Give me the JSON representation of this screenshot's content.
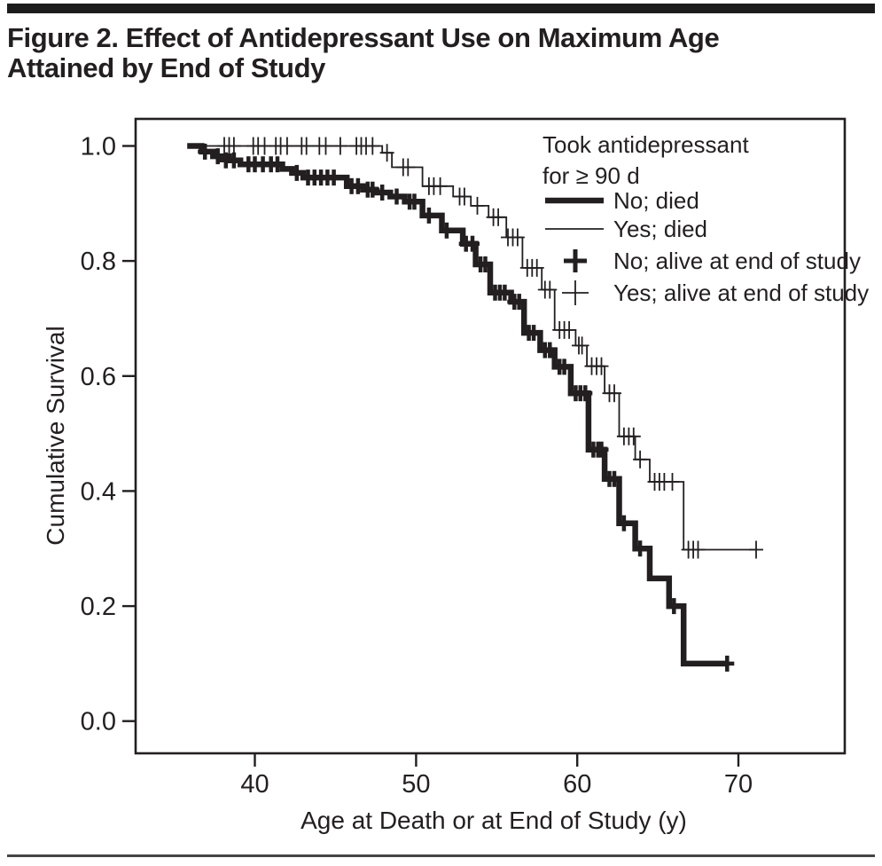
{
  "figure": {
    "title_line1": "Figure 2. Effect of Antidepressant Use on Maximum Age",
    "title_line2": "Attained by End of Study"
  },
  "colors": {
    "ink": "#231f20",
    "background": "#ffffff"
  },
  "chart_data": {
    "type": "line",
    "subtype": "kaplan-meier-step-curves",
    "xlabel": "Age at Death or at End of Study (y)",
    "ylabel": "Cumulative Survival",
    "xlim": [
      32.6,
      76.6
    ],
    "ylim": [
      -0.056,
      1.047
    ],
    "x_ticks": [
      40,
      50,
      60,
      70
    ],
    "y_ticks": [
      1.0,
      0.8,
      0.6,
      0.4,
      0.2,
      0.0
    ],
    "y_tick_labels": [
      "1.0",
      "0.8",
      "0.6",
      "0.4",
      "0.2",
      "0.0"
    ],
    "grid": false,
    "legend": {
      "position": "upper-right-inside",
      "title_line1": "Took antidepressant",
      "title_line2": "for ≥ 90 d",
      "entries": [
        {
          "label": "No; died",
          "marker": "thick-line"
        },
        {
          "label": "Yes; died",
          "marker": "thin-line"
        },
        {
          "label": "No; alive at end of study",
          "marker": "thick-plus"
        },
        {
          "label": "Yes; alive at end of study",
          "marker": "thin-plus"
        }
      ]
    },
    "series": [
      {
        "name": "No; died",
        "style": "thick",
        "steps": [
          [
            35.8,
            1.0
          ],
          [
            36.7,
            0.99
          ],
          [
            37.4,
            0.982
          ],
          [
            38.4,
            0.975
          ],
          [
            39.1,
            0.968
          ],
          [
            41.7,
            0.96
          ],
          [
            42.3,
            0.953
          ],
          [
            43.0,
            0.945
          ],
          [
            45.7,
            0.93
          ],
          [
            46.7,
            0.924
          ],
          [
            47.5,
            0.919
          ],
          [
            48.4,
            0.912
          ],
          [
            49.3,
            0.903
          ],
          [
            50.4,
            0.879
          ],
          [
            51.6,
            0.853
          ],
          [
            52.9,
            0.83
          ],
          [
            53.7,
            0.794
          ],
          [
            54.6,
            0.745
          ],
          [
            55.9,
            0.729
          ],
          [
            56.7,
            0.675
          ],
          [
            57.7,
            0.645
          ],
          [
            58.6,
            0.616
          ],
          [
            59.6,
            0.57
          ],
          [
            60.7,
            0.472
          ],
          [
            61.7,
            0.421
          ],
          [
            62.6,
            0.344
          ],
          [
            63.6,
            0.3
          ],
          [
            64.5,
            0.248
          ],
          [
            65.7,
            0.2
          ],
          [
            66.6,
            0.1
          ],
          [
            69.3,
            0.1
          ]
        ],
        "censors": [
          [
            36.9,
            0.99
          ],
          [
            37.7,
            0.982
          ],
          [
            38.2,
            0.975
          ],
          [
            38.7,
            0.975
          ],
          [
            39.6,
            0.968
          ],
          [
            40.0,
            0.968
          ],
          [
            40.5,
            0.968
          ],
          [
            41.0,
            0.968
          ],
          [
            41.4,
            0.968
          ],
          [
            42.6,
            0.953
          ],
          [
            43.3,
            0.945
          ],
          [
            43.7,
            0.945
          ],
          [
            44.1,
            0.945
          ],
          [
            44.5,
            0.945
          ],
          [
            44.9,
            0.945
          ],
          [
            46.0,
            0.93
          ],
          [
            46.4,
            0.93
          ],
          [
            47.0,
            0.924
          ],
          [
            47.3,
            0.924
          ],
          [
            47.9,
            0.919
          ],
          [
            48.8,
            0.912
          ],
          [
            49.6,
            0.903
          ],
          [
            49.9,
            0.903
          ],
          [
            50.8,
            0.879
          ],
          [
            51.9,
            0.853
          ],
          [
            53.1,
            0.83
          ],
          [
            53.5,
            0.83
          ],
          [
            54.0,
            0.794
          ],
          [
            54.3,
            0.794
          ],
          [
            54.9,
            0.745
          ],
          [
            55.2,
            0.745
          ],
          [
            55.5,
            0.745
          ],
          [
            56.1,
            0.729
          ],
          [
            56.4,
            0.729
          ],
          [
            57.0,
            0.675
          ],
          [
            57.3,
            0.675
          ],
          [
            58.0,
            0.645
          ],
          [
            58.3,
            0.645
          ],
          [
            58.9,
            0.616
          ],
          [
            59.2,
            0.616
          ],
          [
            59.9,
            0.57
          ],
          [
            60.2,
            0.57
          ],
          [
            60.5,
            0.57
          ],
          [
            61.0,
            0.472
          ],
          [
            61.3,
            0.472
          ],
          [
            61.5,
            0.472
          ],
          [
            62.0,
            0.421
          ],
          [
            62.3,
            0.421
          ],
          [
            62.9,
            0.344
          ],
          [
            63.9,
            0.3
          ],
          [
            66.0,
            0.2
          ],
          [
            69.3,
            0.1
          ]
        ]
      },
      {
        "name": "Yes; died",
        "style": "thin",
        "steps": [
          [
            36.8,
            1.0
          ],
          [
            47.9,
            0.988
          ],
          [
            48.5,
            0.963
          ],
          [
            50.4,
            0.93
          ],
          [
            52.3,
            0.912
          ],
          [
            53.4,
            0.896
          ],
          [
            54.5,
            0.876
          ],
          [
            55.6,
            0.841
          ],
          [
            56.6,
            0.788
          ],
          [
            57.8,
            0.75
          ],
          [
            58.6,
            0.68
          ],
          [
            59.9,
            0.653
          ],
          [
            60.6,
            0.617
          ],
          [
            61.7,
            0.57
          ],
          [
            62.6,
            0.495
          ],
          [
            63.6,
            0.455
          ],
          [
            64.5,
            0.416
          ],
          [
            66.6,
            0.298
          ],
          [
            71.1,
            0.298
          ]
        ],
        "censors": [
          [
            38.1,
            1.0
          ],
          [
            38.4,
            1.0
          ],
          [
            38.7,
            1.0
          ],
          [
            39.9,
            1.0
          ],
          [
            40.2,
            1.0
          ],
          [
            40.6,
            1.0
          ],
          [
            41.3,
            1.0
          ],
          [
            41.6,
            1.0
          ],
          [
            42.0,
            1.0
          ],
          [
            42.9,
            1.0
          ],
          [
            43.2,
            1.0
          ],
          [
            44.0,
            1.0
          ],
          [
            44.4,
            1.0
          ],
          [
            45.3,
            1.0
          ],
          [
            46.3,
            1.0
          ],
          [
            46.6,
            1.0
          ],
          [
            46.9,
            1.0
          ],
          [
            47.3,
            1.0
          ],
          [
            48.2,
            0.988
          ],
          [
            49.2,
            0.963
          ],
          [
            49.5,
            0.963
          ],
          [
            50.8,
            0.93
          ],
          [
            51.1,
            0.93
          ],
          [
            51.5,
            0.93
          ],
          [
            52.7,
            0.912
          ],
          [
            53.0,
            0.912
          ],
          [
            53.8,
            0.896
          ],
          [
            54.8,
            0.876
          ],
          [
            55.1,
            0.876
          ],
          [
            55.7,
            0.841
          ],
          [
            56.0,
            0.841
          ],
          [
            56.3,
            0.841
          ],
          [
            56.9,
            0.788
          ],
          [
            57.2,
            0.788
          ],
          [
            57.5,
            0.788
          ],
          [
            58.0,
            0.75
          ],
          [
            58.3,
            0.75
          ],
          [
            58.9,
            0.68
          ],
          [
            59.2,
            0.68
          ],
          [
            59.5,
            0.68
          ],
          [
            60.1,
            0.653
          ],
          [
            60.3,
            0.653
          ],
          [
            60.9,
            0.617
          ],
          [
            61.2,
            0.617
          ],
          [
            61.5,
            0.617
          ],
          [
            62.0,
            0.57
          ],
          [
            62.3,
            0.57
          ],
          [
            62.9,
            0.495
          ],
          [
            63.2,
            0.495
          ],
          [
            63.5,
            0.495
          ],
          [
            63.9,
            0.455
          ],
          [
            64.8,
            0.416
          ],
          [
            65.1,
            0.416
          ],
          [
            65.4,
            0.416
          ],
          [
            65.9,
            0.416
          ],
          [
            66.9,
            0.298
          ],
          [
            67.2,
            0.298
          ],
          [
            67.5,
            0.298
          ],
          [
            71.1,
            0.298
          ]
        ]
      }
    ]
  }
}
